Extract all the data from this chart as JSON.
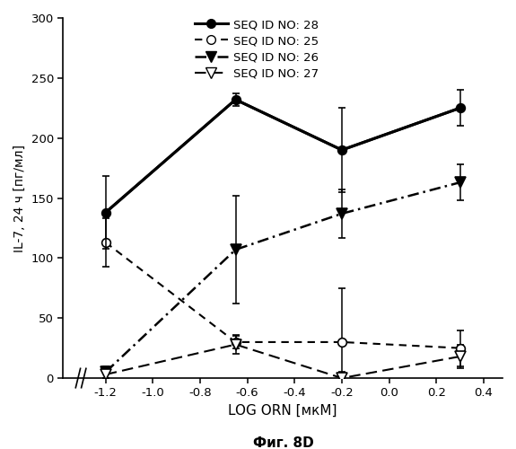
{
  "x_values": [
    -1.2,
    -0.65,
    -0.2,
    0.3
  ],
  "series": [
    {
      "label": "SEQ ID NO: 28",
      "y": [
        138,
        232,
        190,
        225
      ],
      "yerr_lo": [
        30,
        5,
        35,
        15
      ],
      "yerr_hi": [
        30,
        5,
        35,
        15
      ],
      "linestyle": "-",
      "marker": "o",
      "markerfacecolor": "black",
      "linewidth": 2.2,
      "markersize": 7
    },
    {
      "label": "SEQ ID NO: 25",
      "y": [
        113,
        30,
        30,
        25
      ],
      "yerr_lo": [
        20,
        5,
        45,
        15
      ],
      "yerr_hi": [
        20,
        5,
        45,
        15
      ],
      "linestyle": "--",
      "marker": "o",
      "markerfacecolor": "white",
      "linewidth": 1.5,
      "markersize": 7
    },
    {
      "label": "SEQ ID NO: 26",
      "y": [
        5,
        107,
        137,
        163
      ],
      "yerr_lo": [
        5,
        45,
        20,
        15
      ],
      "yerr_hi": [
        5,
        45,
        20,
        15
      ],
      "linestyle": "-.",
      "marker": "v",
      "markerfacecolor": "black",
      "linewidth": 1.8,
      "markersize": 8
    },
    {
      "label": "SEQ ID NO: 27",
      "y": [
        3,
        28,
        0,
        18
      ],
      "yerr_lo": [
        3,
        8,
        0,
        10
      ],
      "yerr_hi": [
        3,
        8,
        5,
        10
      ],
      "linestyle": "-",
      "marker": "v",
      "markerfacecolor": "white",
      "linewidth": 1.5,
      "markersize": 8
    }
  ],
  "xlabel": "LOG ORN [мкМ]",
  "ylabel": "IL-7, 24 ч [пг/мл]",
  "caption": "Фиг. 8D",
  "xlim": [
    -1.38,
    0.48
  ],
  "ylim": [
    0,
    300
  ],
  "yticks": [
    0,
    50,
    100,
    150,
    200,
    250,
    300
  ],
  "xticks": [
    -1.2,
    -1.0,
    -0.8,
    -0.6,
    -0.4,
    -0.2,
    0.0,
    0.2,
    0.4
  ],
  "background_color": "white"
}
